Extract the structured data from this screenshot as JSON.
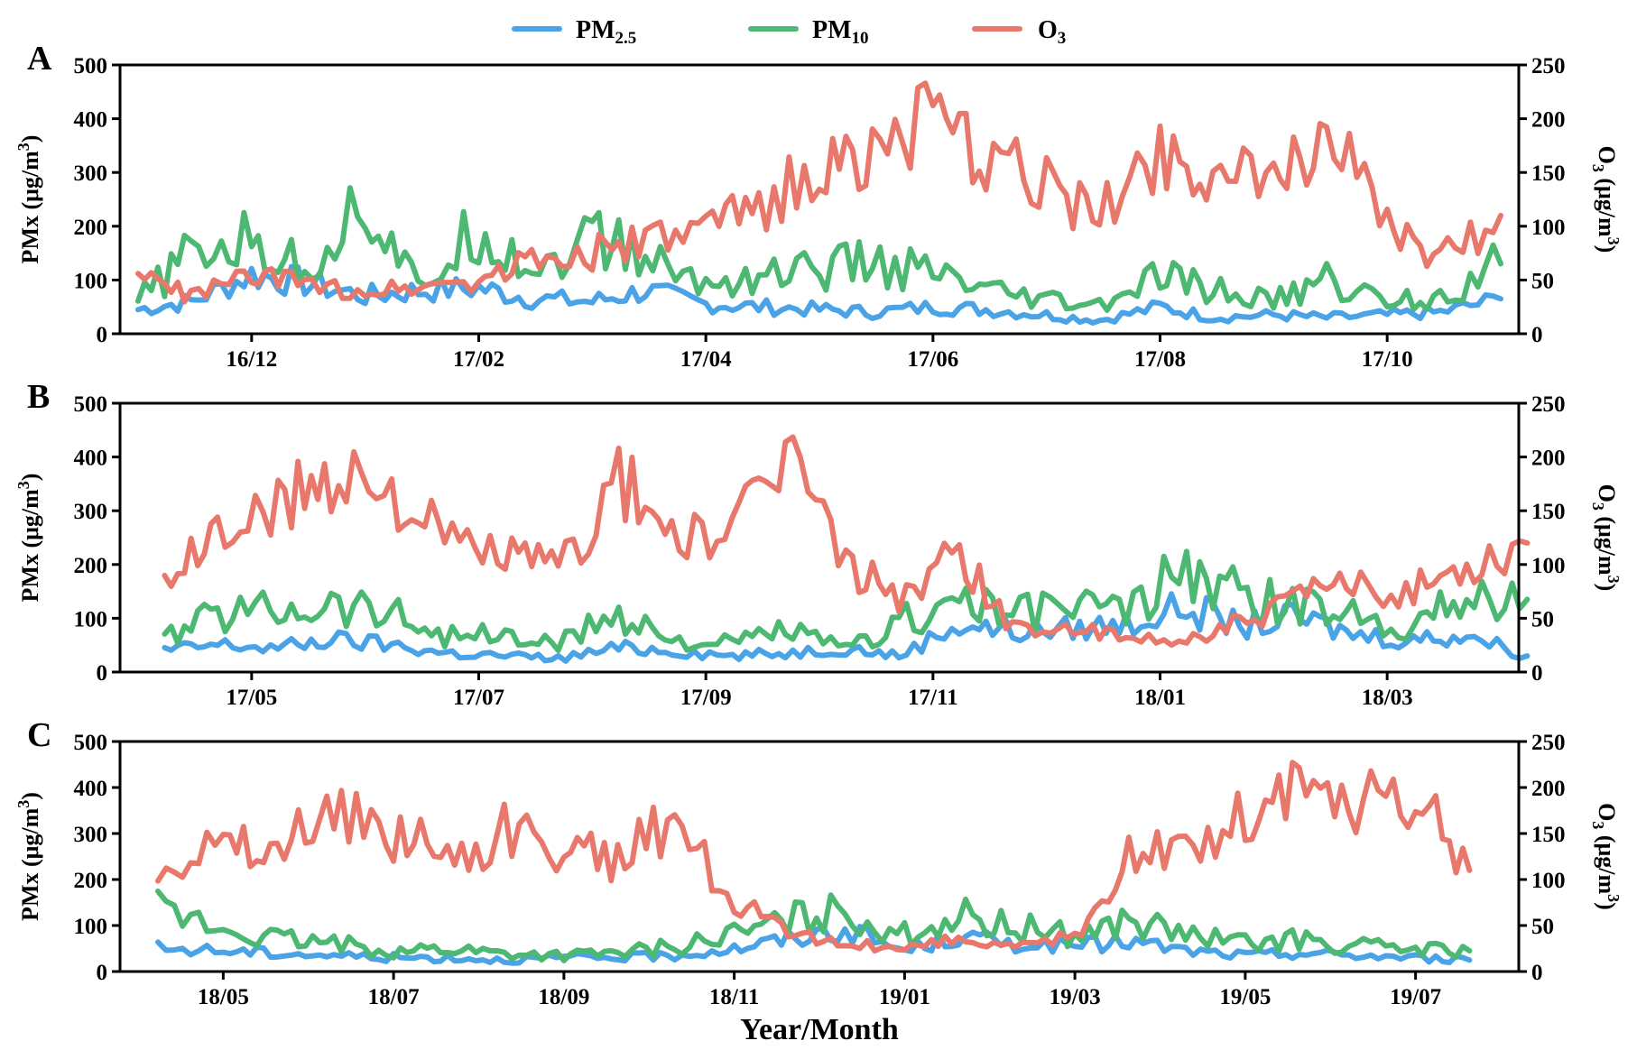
{
  "colors": {
    "pm25": "#4aa3e6",
    "pm10": "#4cb872",
    "o3": "#e8786c"
  },
  "legend": [
    {
      "key": "pm25",
      "base": "PM",
      "sub": "2.5"
    },
    {
      "key": "pm10",
      "base": "PM",
      "sub": "10"
    },
    {
      "key": "o3",
      "base": "O",
      "sub": "3"
    }
  ],
  "xlabel": "Year/Month",
  "ylabel_left": {
    "base": "PMx (μg/m",
    "sup": "3",
    "tail": ")"
  },
  "ylabel_right": {
    "base": "O",
    "sub": "3",
    "mid": " (μg/m",
    "sup": "3",
    "tail": ")"
  },
  "chart_data": [
    {
      "type": "line",
      "panel": "A",
      "x_range": [
        "2016-11",
        "2017-11"
      ],
      "xticks": [
        "16/12",
        "17/02",
        "17/04",
        "17/06",
        "17/08",
        "17/10"
      ],
      "ylim_left": [
        0,
        500
      ],
      "yticks_left": [
        0,
        100,
        200,
        300,
        400,
        500
      ],
      "ylim_right": [
        0,
        250
      ],
      "yticks_right": [
        0,
        50,
        100,
        150,
        200,
        250
      ],
      "series": [
        {
          "key": "pm25",
          "name": "PM2.5",
          "axis": "left",
          "x": [
            "2016-11-01",
            "2016-11-15",
            "2016-12-01",
            "2016-12-15",
            "2017-01-01",
            "2017-01-15",
            "2017-02-01",
            "2017-02-15",
            "2017-03-01",
            "2017-03-15",
            "2017-04-01",
            "2017-04-15",
            "2017-05-01",
            "2017-05-15",
            "2017-06-01",
            "2017-06-15",
            "2017-07-01",
            "2017-07-15",
            "2017-08-01",
            "2017-08-15",
            "2017-09-01",
            "2017-09-15",
            "2017-10-01",
            "2017-10-15",
            "2017-11-01"
          ],
          "values": [
            45,
            60,
            110,
            95,
            70,
            80,
            85,
            65,
            60,
            80,
            55,
            50,
            45,
            40,
            50,
            45,
            35,
            25,
            50,
            30,
            35,
            30,
            35,
            40,
            65
          ]
        },
        {
          "key": "pm10",
          "name": "PM10",
          "axis": "left",
          "x": [
            "2016-11-01",
            "2016-11-15",
            "2016-12-01",
            "2016-12-15",
            "2017-01-01",
            "2017-01-15",
            "2017-02-01",
            "2017-02-15",
            "2017-03-01",
            "2017-03-15",
            "2017-04-01",
            "2017-04-15",
            "2017-05-01",
            "2017-05-15",
            "2017-06-01",
            "2017-06-15",
            "2017-07-01",
            "2017-07-15",
            "2017-08-01",
            "2017-08-15",
            "2017-09-01",
            "2017-09-15",
            "2017-10-01",
            "2017-10-15",
            "2017-11-01"
          ],
          "values": [
            60,
            150,
            170,
            120,
            250,
            80,
            200,
            120,
            180,
            140,
            90,
            110,
            120,
            130,
            110,
            75,
            60,
            50,
            105,
            80,
            60,
            100,
            60,
            70,
            130
          ]
        },
        {
          "key": "o3",
          "name": "O3",
          "axis": "right",
          "x": [
            "2016-11-01",
            "2016-11-15",
            "2016-12-01",
            "2016-12-15",
            "2017-01-01",
            "2017-01-15",
            "2017-02-01",
            "2017-02-15",
            "2017-03-01",
            "2017-03-15",
            "2017-04-01",
            "2017-04-15",
            "2017-05-01",
            "2017-05-15",
            "2017-06-01",
            "2017-06-15",
            "2017-07-01",
            "2017-07-15",
            "2017-08-01",
            "2017-08-15",
            "2017-09-01",
            "2017-09-15",
            "2017-10-01",
            "2017-10-15",
            "2017-11-01"
          ],
          "values": [
            55,
            35,
            55,
            45,
            40,
            45,
            50,
            70,
            75,
            85,
            95,
            120,
            150,
            170,
            195,
            160,
            140,
            110,
            175,
            150,
            135,
            200,
            95,
            70,
            110
          ]
        }
      ]
    },
    {
      "type": "line",
      "panel": "B",
      "x_range": [
        "2017-04",
        "2018-04"
      ],
      "xticks": [
        "17/05",
        "17/07",
        "17/09",
        "17/11",
        "18/01",
        "18/03"
      ],
      "ylim_left": [
        0,
        500
      ],
      "yticks_left": [
        0,
        100,
        200,
        300,
        400,
        500
      ],
      "ylim_right": [
        0,
        250
      ],
      "yticks_right": [
        0,
        50,
        100,
        150,
        200,
        250
      ],
      "series": [
        {
          "key": "pm25",
          "name": "PM2.5",
          "axis": "left",
          "x": [
            "2017-04-08",
            "2017-04-22",
            "2017-05-08",
            "2017-05-22",
            "2017-06-08",
            "2017-06-22",
            "2017-07-08",
            "2017-07-22",
            "2017-08-08",
            "2017-08-22",
            "2017-09-08",
            "2017-09-22",
            "2017-10-08",
            "2017-10-22",
            "2017-11-08",
            "2017-11-22",
            "2017-12-08",
            "2017-12-22",
            "2018-01-08",
            "2018-01-22",
            "2018-02-08",
            "2018-02-22",
            "2018-03-08",
            "2018-03-22",
            "2018-04-08"
          ],
          "values": [
            40,
            50,
            45,
            60,
            50,
            35,
            30,
            25,
            45,
            40,
            30,
            35,
            45,
            30,
            90,
            75,
            80,
            90,
            120,
            85,
            100,
            70,
            60,
            70,
            30
          ]
        },
        {
          "key": "pm10",
          "name": "PM10",
          "axis": "left",
          "x": [
            "2017-04-08",
            "2017-04-22",
            "2017-05-08",
            "2017-05-22",
            "2017-06-08",
            "2017-06-22",
            "2017-07-08",
            "2017-07-22",
            "2017-08-08",
            "2017-08-22",
            "2017-09-08",
            "2017-09-22",
            "2017-10-08",
            "2017-10-22",
            "2017-11-08",
            "2017-11-22",
            "2017-12-08",
            "2017-12-22",
            "2018-01-08",
            "2018-01-22",
            "2018-02-08",
            "2018-02-22",
            "2018-03-08",
            "2018-03-22",
            "2018-04-08"
          ],
          "values": [
            60,
            110,
            120,
            130,
            110,
            70,
            65,
            50,
            110,
            60,
            50,
            80,
            40,
            90,
            140,
            100,
            130,
            110,
            190,
            140,
            120,
            110,
            90,
            140,
            135
          ]
        },
        {
          "key": "o3",
          "name": "O3",
          "axis": "right",
          "x": [
            "2017-04-08",
            "2017-04-22",
            "2017-05-08",
            "2017-05-22",
            "2017-06-08",
            "2017-06-22",
            "2017-07-08",
            "2017-07-22",
            "2017-08-08",
            "2017-08-22",
            "2017-09-08",
            "2017-09-22",
            "2017-10-08",
            "2017-10-22",
            "2017-11-08",
            "2017-11-22",
            "2017-12-08",
            "2017-12-22",
            "2018-01-08",
            "2018-01-22",
            "2018-02-08",
            "2018-02-22",
            "2018-03-08",
            "2018-03-22",
            "2018-04-08"
          ],
          "values": [
            80,
            130,
            150,
            190,
            170,
            120,
            110,
            95,
            175,
            130,
            120,
            210,
            100,
            70,
            110,
            40,
            40,
            30,
            30,
            45,
            70,
            80,
            75,
            100,
            120
          ]
        }
      ]
    },
    {
      "type": "line",
      "panel": "C",
      "x_range": [
        "2018-04",
        "2019-08"
      ],
      "xticks": [
        "18/05",
        "18/07",
        "18/09",
        "18/11",
        "19/01",
        "19/03",
        "19/05",
        "19/07"
      ],
      "ylim_left": [
        0,
        500
      ],
      "yticks_left": [
        0,
        100,
        200,
        300,
        400,
        500
      ],
      "ylim_right": [
        0,
        250
      ],
      "yticks_right": [
        0,
        50,
        100,
        150,
        200,
        250
      ],
      "series": [
        {
          "key": "pm25",
          "name": "PM2.5",
          "axis": "left",
          "x": [
            "2018-04-08",
            "2018-05-01",
            "2018-05-20",
            "2018-06-10",
            "2018-07-01",
            "2018-07-20",
            "2018-08-10",
            "2018-09-01",
            "2018-09-20",
            "2018-10-10",
            "2018-11-01",
            "2018-11-20",
            "2018-12-10",
            "2019-01-01",
            "2019-01-20",
            "2019-02-10",
            "2019-03-01",
            "2019-03-20",
            "2019-04-10",
            "2019-05-01",
            "2019-05-20",
            "2019-06-10",
            "2019-07-01",
            "2019-07-20"
          ],
          "values": [
            50,
            45,
            40,
            35,
            30,
            30,
            25,
            30,
            30,
            35,
            50,
            70,
            90,
            45,
            75,
            60,
            55,
            65,
            45,
            35,
            40,
            35,
            30,
            25
          ]
        },
        {
          "key": "pm10",
          "name": "PM10",
          "axis": "left",
          "x": [
            "2018-04-08",
            "2018-05-01",
            "2018-05-20",
            "2018-06-10",
            "2018-07-01",
            "2018-07-20",
            "2018-08-10",
            "2018-09-01",
            "2018-09-20",
            "2018-10-10",
            "2018-11-01",
            "2018-11-20",
            "2018-12-10",
            "2019-01-01",
            "2019-01-20",
            "2019-02-10",
            "2019-03-01",
            "2019-03-20",
            "2019-04-10",
            "2019-05-01",
            "2019-05-20",
            "2019-06-10",
            "2019-07-01",
            "2019-07-20"
          ],
          "values": [
            130,
            90,
            70,
            60,
            45,
            50,
            40,
            35,
            40,
            55,
            80,
            110,
            130,
            80,
            120,
            95,
            80,
            110,
            80,
            60,
            70,
            55,
            50,
            45
          ]
        },
        {
          "key": "o3",
          "name": "O3",
          "axis": "right",
          "x": [
            "2018-04-08",
            "2018-05-01",
            "2018-05-20",
            "2018-06-10",
            "2018-07-01",
            "2018-07-20",
            "2018-08-10",
            "2018-09-01",
            "2018-09-20",
            "2018-10-10",
            "2018-11-01",
            "2018-11-20",
            "2018-12-10",
            "2019-01-01",
            "2019-01-20",
            "2019-02-10",
            "2019-03-01",
            "2019-03-20",
            "2019-04-10",
            "2019-05-01",
            "2019-05-20",
            "2019-06-10",
            "2019-07-01",
            "2019-07-20"
          ],
          "values": [
            125,
            140,
            130,
            175,
            150,
            125,
            150,
            130,
            120,
            165,
            80,
            40,
            30,
            25,
            35,
            25,
            40,
            120,
            130,
            170,
            200,
            180,
            190,
            110
          ]
        }
      ]
    }
  ]
}
